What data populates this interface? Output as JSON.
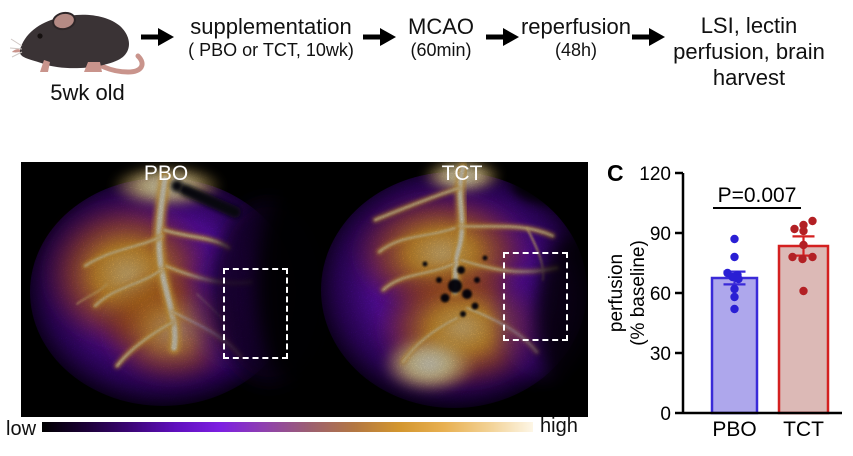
{
  "flow": {
    "mouse_label": "5wk old",
    "steps": [
      {
        "main": "supplementation",
        "sub": "( PBO or TCT, 10wk)"
      },
      {
        "main": "MCAO",
        "sub": "(60min)"
      },
      {
        "main": "reperfusion",
        "sub": "(48h)"
      }
    ],
    "endpoint_lines": [
      "LSI, lectin",
      "perfusion, brain",
      "harvest"
    ]
  },
  "imaging": {
    "labels": {
      "left": "PBO",
      "right": "TCT"
    },
    "colorbar": {
      "low_label": "low",
      "high_label": "high",
      "gradient": [
        "#000000",
        "#1c0038",
        "#3c0578",
        "#5f0fbe",
        "#7d1fe2",
        "#8f41ad",
        "#9c5f70",
        "#b37742",
        "#d3962e",
        "#e8b051",
        "#f2d193",
        "#fdf6e6"
      ]
    }
  },
  "chart_data": {
    "type": "bar",
    "panel_label": "C",
    "ylabel_lines": [
      "perfusion",
      "(% baseline)"
    ],
    "ylim": [
      0,
      120
    ],
    "yticks": [
      0,
      30,
      60,
      90,
      120
    ],
    "categories": [
      "PBO",
      "TCT"
    ],
    "annotation": "P=0.007",
    "axis_color": "#000000",
    "grid": false,
    "legend": "none",
    "series": [
      {
        "name": "PBO",
        "mean": 67.5,
        "sem": 3.2,
        "points": [
          87,
          78,
          70,
          69,
          68,
          67,
          62,
          58,
          52
        ],
        "point_dx": [
          0,
          0,
          -7,
          3,
          -2,
          4,
          0,
          0,
          0
        ],
        "bar_fill": "#aea7ec",
        "bar_stroke": "#3a2ad8",
        "dot_color": "#2a1fd4"
      },
      {
        "name": "TCT",
        "mean": 83.5,
        "sem": 4.8,
        "points": [
          96,
          94,
          92,
          91,
          84,
          78,
          77,
          78,
          61
        ],
        "point_dx": [
          9,
          0,
          -9,
          0,
          0,
          -11,
          -1,
          9,
          0
        ],
        "bar_fill": "#dcb9b6",
        "bar_stroke": "#d42020",
        "dot_color": "#b32024"
      }
    ]
  }
}
